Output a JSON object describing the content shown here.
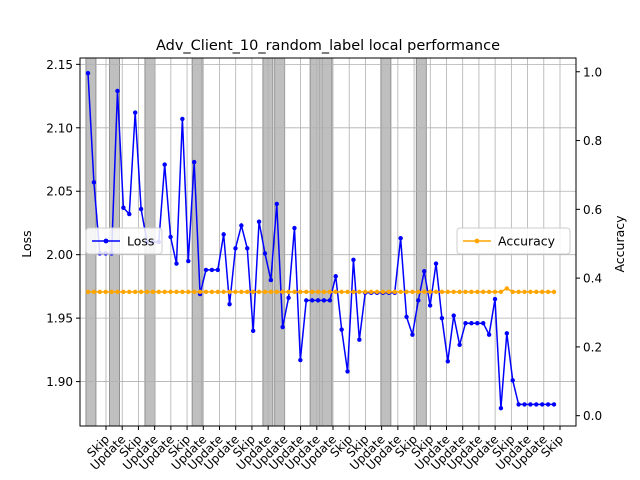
{
  "chart_data": {
    "type": "line",
    "title": "Adv_Client_10_random_label local performance",
    "ylabel": "Loss",
    "y2label": "Accuracy",
    "ylim": [
      1.865,
      2.155
    ],
    "y2lim": [
      -0.03,
      1.04
    ],
    "yticks": [
      "1.90",
      "1.95",
      "2.00",
      "2.05",
      "2.10",
      "2.15"
    ],
    "y2ticks": [
      "0.0",
      "0.2",
      "0.4",
      "0.6",
      "0.8",
      "1.0"
    ],
    "grid": true,
    "x_tick_labels": [
      "Skip",
      "Update",
      "Skip",
      "Update",
      "Update",
      "Skip",
      "Update",
      "Update",
      "Update",
      "Skip",
      "Update",
      "Update",
      "Update",
      "Update",
      "Update",
      "Skip",
      "Skip",
      "Update",
      "Update",
      "Skip",
      "Skip",
      "Update",
      "Update",
      "Update",
      "Update",
      "Skip",
      "Update",
      "Update",
      "Skip"
    ],
    "skip_bands": [
      [
        0,
        1
      ],
      [
        4,
        5
      ],
      [
        10,
        11
      ],
      [
        18,
        19
      ],
      [
        30,
        31
      ],
      [
        32,
        33
      ],
      [
        38,
        39
      ],
      [
        40,
        41
      ],
      [
        50,
        51
      ],
      [
        56,
        57
      ]
    ],
    "series": [
      {
        "name": "Loss",
        "color": "#0000ff",
        "axis": "left",
        "legend_position": "center-left",
        "values": [
          2.143,
          2.057,
          2.001,
          2.001,
          2.001,
          2.129,
          2.037,
          2.032,
          2.112,
          2.036,
          2.01,
          2.01,
          2.01,
          2.071,
          2.014,
          1.993,
          2.107,
          1.995,
          2.073,
          1.969,
          1.988,
          1.988,
          1.988,
          2.016,
          1.961,
          2.005,
          2.023,
          2.005,
          1.94,
          2.026,
          2.001,
          1.98,
          2.04,
          1.943,
          1.966,
          2.021,
          1.917,
          1.964,
          1.964,
          1.964,
          1.964,
          1.964,
          1.983,
          1.941,
          1.908,
          1.996,
          1.933,
          1.97,
          1.97,
          1.97,
          1.97,
          1.97,
          1.97,
          2.013,
          1.951,
          1.937,
          1.964,
          1.987,
          1.96,
          1.993,
          1.95,
          1.916,
          1.952,
          1.929,
          1.946,
          1.946,
          1.946,
          1.946,
          1.937,
          1.965,
          1.879,
          1.938,
          1.901,
          1.882,
          1.882,
          1.882,
          1.882,
          1.882,
          1.882,
          1.882
        ]
      },
      {
        "name": "Accuracy",
        "color": "#ffa500",
        "axis": "right",
        "legend_position": "center-right",
        "values": [
          0.36,
          0.36,
          0.36,
          0.36,
          0.36,
          0.36,
          0.36,
          0.36,
          0.36,
          0.36,
          0.36,
          0.36,
          0.36,
          0.36,
          0.36,
          0.36,
          0.36,
          0.36,
          0.36,
          0.36,
          0.36,
          0.36,
          0.36,
          0.36,
          0.36,
          0.36,
          0.36,
          0.36,
          0.36,
          0.36,
          0.36,
          0.36,
          0.36,
          0.36,
          0.36,
          0.36,
          0.36,
          0.36,
          0.36,
          0.36,
          0.36,
          0.36,
          0.36,
          0.36,
          0.36,
          0.36,
          0.36,
          0.36,
          0.36,
          0.36,
          0.36,
          0.36,
          0.36,
          0.36,
          0.36,
          0.36,
          0.36,
          0.36,
          0.36,
          0.36,
          0.36,
          0.36,
          0.36,
          0.36,
          0.36,
          0.36,
          0.36,
          0.36,
          0.36,
          0.36,
          0.36,
          0.37,
          0.36,
          0.36,
          0.36,
          0.36,
          0.36,
          0.36,
          0.36,
          0.36
        ]
      }
    ]
  }
}
